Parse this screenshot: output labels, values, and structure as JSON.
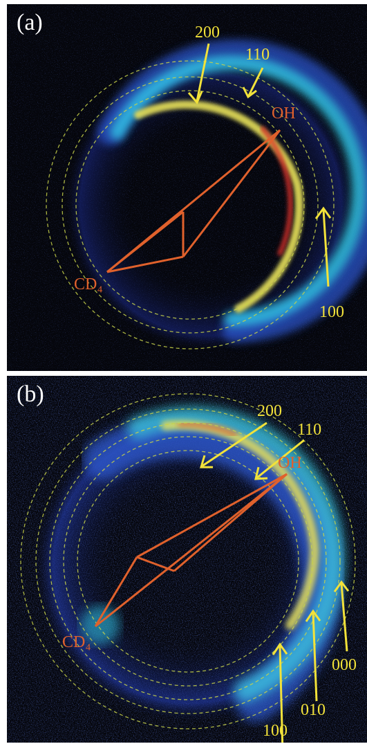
{
  "panels": [
    {
      "id": "a",
      "label": "(a)",
      "molecule_labels": {
        "oh": "OH",
        "cd4": "CD₄"
      },
      "state_labels": [
        "200",
        "110",
        "100"
      ]
    },
    {
      "id": "b",
      "label": "(b)",
      "molecule_labels": {
        "oh": "OH",
        "cd4": "CD₄"
      },
      "state_labels": [
        "200",
        "110",
        "000",
        "010",
        "100"
      ]
    }
  ],
  "colors": {
    "background": "#05060c",
    "annotation_yellow": "#f2e23a",
    "molecule_orange": "#e0612c",
    "ring_dashed": "#c7d24a"
  },
  "image_type": "false-color velocity-map ion image"
}
